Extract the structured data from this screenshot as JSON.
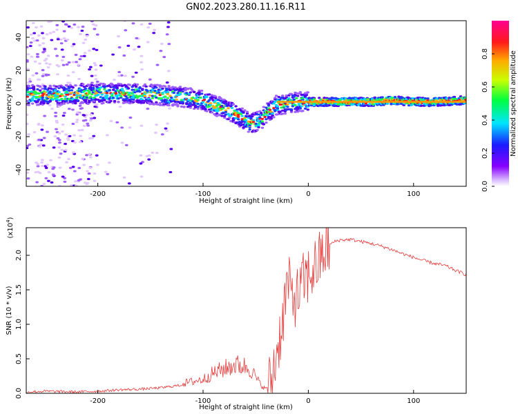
{
  "title": "GN02.2023.280.11.16.R11",
  "chart_data": [
    {
      "type": "heatmap",
      "xlabel": "Height of straight line (km)",
      "ylabel": "Frequency (Hz)",
      "xlim": [
        -268,
        150
      ],
      "ylim": [
        -50,
        50
      ],
      "xticks": [
        -200,
        -100,
        0,
        100
      ],
      "yticks": [
        -40,
        -20,
        0,
        20,
        40
      ],
      "colorbar": {
        "label": "Normalized spectral amplitude",
        "range": [
          0,
          1
        ],
        "ticks": [
          "0.0",
          "0.2",
          "0.4",
          "0.6",
          "0.8"
        ],
        "colormap": "rainbow (white-purple-blue-cyan-green-yellow-orange-red-magenta)"
      },
      "ridge": {
        "description": "dominant frequency ridge",
        "x": [
          -268,
          -240,
          -200,
          -160,
          -140,
          -120,
          -100,
          -90,
          -80,
          -70,
          -60,
          -55,
          -50,
          -45,
          -40,
          -30,
          -20,
          -10,
          0,
          20,
          40,
          60,
          80,
          100,
          120,
          150
        ],
        "freq_hz": [
          5,
          5,
          6,
          6,
          5,
          4,
          2,
          -1,
          -3,
          -6,
          -10,
          -12,
          -11,
          -10,
          -6,
          -1,
          0,
          1,
          1,
          1,
          1,
          1,
          2,
          1,
          1,
          2
        ]
      }
    },
    {
      "type": "line",
      "xlabel": "Height of straight line (km)",
      "ylabel": "SNR (10 * v/v)",
      "multiplier_label": "(x10",
      "multiplier_exp": "4",
      "xlim": [
        -268,
        150
      ],
      "ylim": [
        0,
        2.4
      ],
      "xticks": [
        -200,
        -100,
        0,
        100
      ],
      "yticks": [
        "0.0",
        "0.5",
        "1.0",
        "1.5",
        "2.0"
      ],
      "series": [
        {
          "color": "#e83a3a",
          "x": [
            -268,
            -250,
            -220,
            -200,
            -180,
            -160,
            -140,
            -120,
            -100,
            -90,
            -80,
            -70,
            -60,
            -55,
            -50,
            -45,
            -40,
            -35,
            -30,
            -25,
            -20,
            -15,
            -10,
            -5,
            0,
            5,
            10,
            15,
            20,
            25,
            30,
            40,
            50,
            60,
            70,
            80,
            90,
            100,
            110,
            120,
            130,
            140,
            150
          ],
          "y": [
            0.02,
            0.03,
            0.02,
            0.03,
            0.05,
            0.06,
            0.08,
            0.12,
            0.17,
            0.25,
            0.3,
            0.35,
            0.33,
            0.3,
            0.2,
            0.1,
            0.05,
            0.2,
            0.6,
            1.0,
            1.6,
            1.4,
            1.4,
            1.6,
            1.7,
            1.8,
            1.9,
            2.05,
            2.15,
            2.2,
            2.22,
            2.23,
            2.2,
            2.17,
            2.13,
            2.08,
            2.02,
            1.97,
            1.92,
            1.88,
            1.85,
            1.78,
            1.72
          ]
        }
      ]
    }
  ]
}
